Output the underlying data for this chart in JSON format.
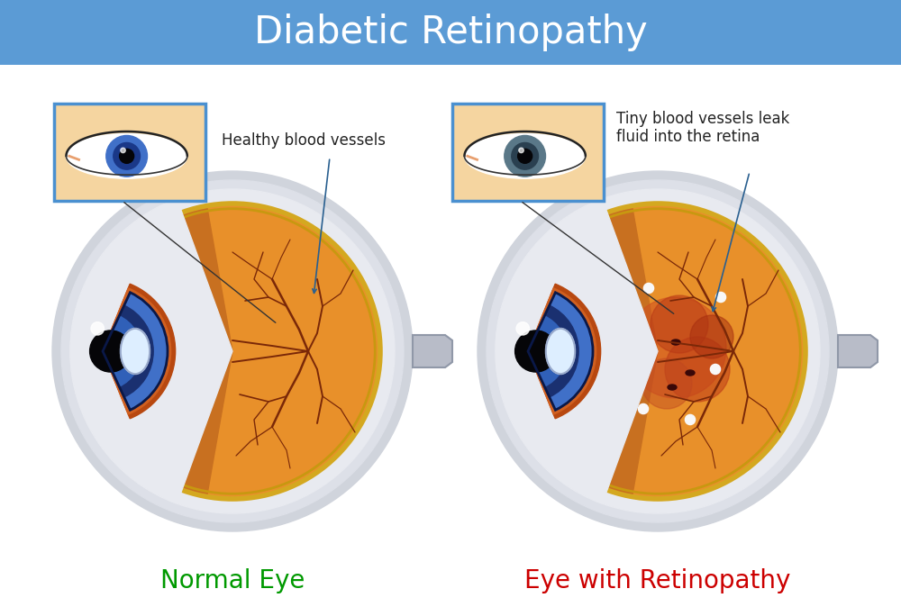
{
  "title": "Diabetic Retinopathy",
  "title_bg_color": "#5b9bd5",
  "title_text_color": "#ffffff",
  "title_fontsize": 30,
  "bg_color": "#ffffff",
  "label_left": "Normal Eye",
  "label_right": "Eye with Retinopathy",
  "label_left_color": "#009900",
  "label_right_color": "#cc0000",
  "label_fontsize": 20,
  "annotation_left": "Healthy blood vessels",
  "annotation_right": "Tiny blood vessels leak\nfluid into the retina",
  "annotation_fontsize": 12,
  "sclera_outer_color": "#d0d4dc",
  "sclera_mid_color": "#dde0e8",
  "sclera_inner_color": "#e8eaf0",
  "retina_color": "#e8902a",
  "retina_dark_color": "#c87020",
  "retina_gold_ring": "#d4a820",
  "vessel_color": "#7a2808",
  "cornea_blue1": "#4070c8",
  "cornea_blue2": "#1a3888",
  "cornea_blue3": "#2a5ab0",
  "lens_color": "#ddeeff",
  "lens_border": "#99aacc",
  "orange_rim": "#c05810",
  "skin_color": "#f5d5a0",
  "eye_box_border": "#4a90d0",
  "nerve_color": "#b8bcc8",
  "nerve_border": "#9098a8",
  "bleed_color1": "#c84818",
  "bleed_color2": "#a03010",
  "spot_white": "#f8f8f8",
  "annot_line_color": "#2a6090"
}
